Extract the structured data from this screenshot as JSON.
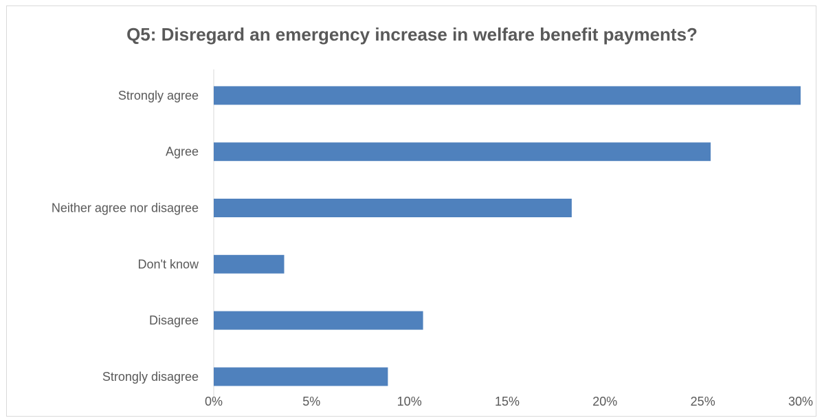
{
  "chart_data": {
    "type": "bar",
    "orientation": "horizontal",
    "title": "Q5: Disregard an emergency increase in welfare benefit payments?",
    "categories": [
      "Strongly agree",
      "Agree",
      "Neither agree nor disagree",
      "Don't know",
      "Disagree",
      "Strongly disagree"
    ],
    "values": [
      30,
      25.4,
      18.3,
      3.6,
      10.7,
      8.9
    ],
    "value_unit": "%",
    "xlim": [
      0,
      30
    ],
    "x_ticks": [
      "0%",
      "5%",
      "10%",
      "15%",
      "20%",
      "25%",
      "30%"
    ],
    "xlabel": "",
    "ylabel": "",
    "grid": false,
    "legend": "none",
    "bar_color": "#4f81bd"
  }
}
